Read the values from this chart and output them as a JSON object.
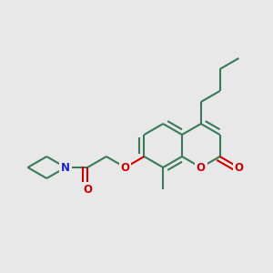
{
  "bg_color": "#e8e8e8",
  "bond_color": "#3a7a58",
  "bond_width": 1.5,
  "atom_colors": {
    "O": "#cc0000",
    "N": "#2222cc",
    "C": "#000000"
  },
  "font_size": 8.5
}
